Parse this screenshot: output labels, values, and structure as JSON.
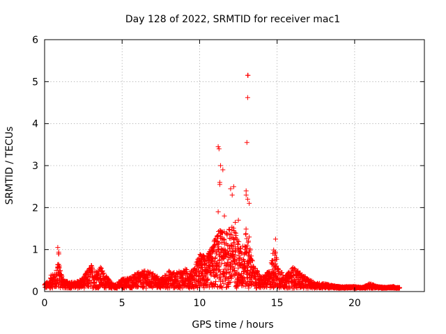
{
  "chart_data": {
    "type": "scatter",
    "title": "Day 128 of 2022, SRMTID for receiver mac1",
    "xlabel": "GPS time / hours",
    "ylabel": "SRMTID / TECUs",
    "xlim": [
      0,
      24.5
    ],
    "ylim": [
      0,
      6
    ],
    "xticks": [
      0,
      5,
      10,
      15,
      20
    ],
    "yticks": [
      0,
      1,
      2,
      3,
      4,
      5,
      6
    ],
    "grid": true,
    "marker": "+",
    "color": "#ff0000",
    "series": [
      {
        "name": "SRMTID",
        "envelope": [
          [
            0.0,
            0.2
          ],
          [
            0.3,
            0.25
          ],
          [
            0.5,
            0.5
          ],
          [
            0.7,
            0.4
          ],
          [
            0.8,
            0.65
          ],
          [
            0.9,
            1.0
          ],
          [
            1.0,
            0.55
          ],
          [
            1.3,
            0.25
          ],
          [
            2.0,
            0.22
          ],
          [
            2.5,
            0.35
          ],
          [
            3.0,
            0.65
          ],
          [
            3.3,
            0.5
          ],
          [
            3.6,
            0.6
          ],
          [
            4.0,
            0.35
          ],
          [
            4.5,
            0.15
          ],
          [
            5.0,
            0.3
          ],
          [
            5.5,
            0.35
          ],
          [
            6.0,
            0.45
          ],
          [
            6.5,
            0.5
          ],
          [
            7.0,
            0.45
          ],
          [
            7.5,
            0.3
          ],
          [
            8.0,
            0.5
          ],
          [
            8.5,
            0.45
          ],
          [
            9.0,
            0.55
          ],
          [
            9.5,
            0.5
          ],
          [
            10.0,
            0.9
          ],
          [
            10.5,
            0.85
          ],
          [
            11.0,
            1.3
          ],
          [
            11.3,
            1.5
          ],
          [
            11.7,
            1.4
          ],
          [
            12.0,
            1.6
          ],
          [
            12.3,
            1.5
          ],
          [
            12.7,
            1.0
          ],
          [
            13.0,
            1.5
          ],
          [
            13.5,
            0.6
          ],
          [
            14.0,
            0.35
          ],
          [
            14.5,
            0.5
          ],
          [
            14.8,
            1.1
          ],
          [
            15.1,
            0.6
          ],
          [
            15.5,
            0.35
          ],
          [
            16.0,
            0.6
          ],
          [
            16.5,
            0.45
          ],
          [
            17.0,
            0.3
          ],
          [
            17.5,
            0.2
          ],
          [
            18.0,
            0.2
          ],
          [
            18.5,
            0.15
          ],
          [
            19.0,
            0.12
          ],
          [
            20.0,
            0.12
          ],
          [
            20.5,
            0.1
          ],
          [
            21.0,
            0.2
          ],
          [
            21.5,
            0.12
          ],
          [
            22.0,
            0.1
          ],
          [
            22.5,
            0.12
          ],
          [
            22.9,
            0.08
          ]
        ],
        "outliers": [
          [
            0.85,
            1.05
          ],
          [
            11.2,
            3.45
          ],
          [
            11.25,
            3.4
          ],
          [
            11.35,
            3.0
          ],
          [
            11.5,
            2.9
          ],
          [
            11.3,
            2.6
          ],
          [
            11.3,
            2.55
          ],
          [
            12.0,
            2.45
          ],
          [
            12.2,
            2.5
          ],
          [
            12.1,
            2.3
          ],
          [
            13.1,
            5.15
          ],
          [
            13.12,
            5.15
          ],
          [
            13.1,
            4.62
          ],
          [
            13.05,
            3.55
          ],
          [
            13.0,
            2.4
          ],
          [
            13.0,
            2.3
          ],
          [
            13.1,
            2.2
          ],
          [
            13.2,
            2.1
          ],
          [
            11.2,
            1.9
          ],
          [
            11.6,
            1.8
          ],
          [
            12.3,
            1.65
          ],
          [
            12.5,
            1.7
          ],
          [
            13.2,
            1.3
          ],
          [
            14.9,
            1.25
          ]
        ]
      }
    ]
  }
}
